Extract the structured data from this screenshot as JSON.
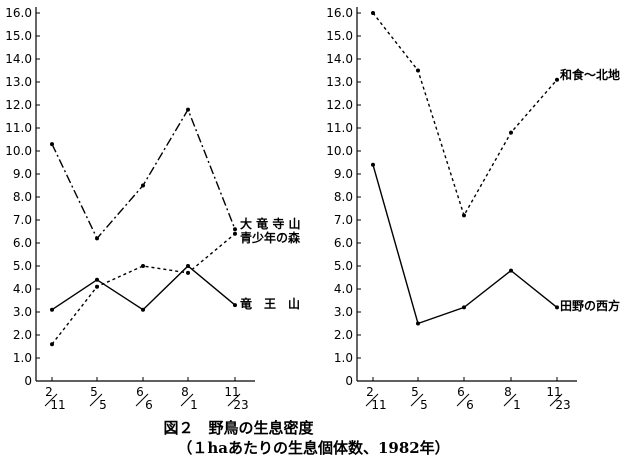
{
  "caption": {
    "title": "図２　野鳥の生息密度",
    "subtitle": "（１haあたりの生息個体数、1982年）"
  },
  "chart_data": [
    {
      "type": "line",
      "ylim": [
        0,
        16
      ],
      "yticks": [
        "0",
        "1.0",
        "2.0",
        "3.0",
        "4.0",
        "5.0",
        "6.0",
        "7.0",
        "8.0",
        "9.0",
        "10.0",
        "11.0",
        "12.0",
        "13.0",
        "14.0",
        "15.0",
        "16.0"
      ],
      "categories": [
        {
          "top": "2",
          "bottom": "11"
        },
        {
          "top": "5",
          "bottom": "5"
        },
        {
          "top": "6",
          "bottom": "6"
        },
        {
          "top": "8",
          "bottom": "1"
        },
        {
          "top": "11",
          "bottom": "23"
        }
      ],
      "series": [
        {
          "name": "大竜寺山",
          "style": "dashdot",
          "values": [
            10.3,
            6.2,
            8.5,
            11.8,
            6.6
          ]
        },
        {
          "name": "青少年の森",
          "style": "dotted",
          "values": [
            1.6,
            4.1,
            5.0,
            4.7,
            6.4
          ]
        },
        {
          "name": "竜　王　山",
          "style": "solid",
          "values": [
            3.1,
            4.4,
            3.1,
            5.0,
            3.3
          ]
        }
      ],
      "series_labels": [
        "大 竜 寺 山",
        "青少年の森",
        "竜　王　山"
      ]
    },
    {
      "type": "line",
      "ylim": [
        0,
        16
      ],
      "yticks": [
        "0",
        "1.0",
        "2.0",
        "3.0",
        "4.0",
        "5.0",
        "6.0",
        "7.0",
        "8.0",
        "9.0",
        "10.0",
        "11.0",
        "12.0",
        "13.0",
        "14.0",
        "15.0",
        "16.0"
      ],
      "categories": [
        {
          "top": "2",
          "bottom": "11"
        },
        {
          "top": "5",
          "bottom": "5"
        },
        {
          "top": "6",
          "bottom": "6"
        },
        {
          "top": "8",
          "bottom": "1"
        },
        {
          "top": "11",
          "bottom": "23"
        }
      ],
      "series": [
        {
          "name": "和食〜北地",
          "style": "dotted",
          "values": [
            16.0,
            13.5,
            7.2,
            10.8,
            13.1
          ]
        },
        {
          "name": "田野の西方",
          "style": "solid",
          "values": [
            9.4,
            2.5,
            3.2,
            4.8,
            3.2
          ]
        }
      ],
      "series_labels": [
        "和食〜北地",
        "田野の西方"
      ]
    }
  ]
}
